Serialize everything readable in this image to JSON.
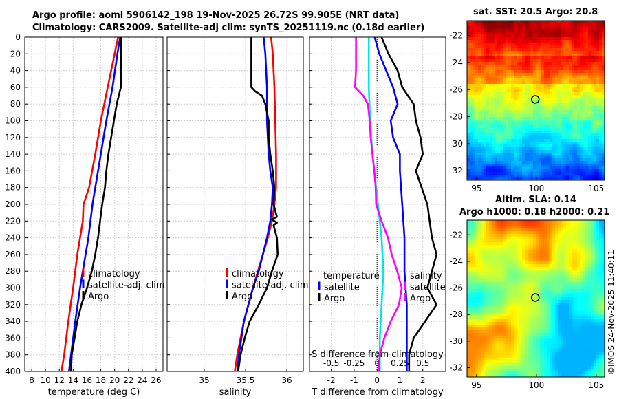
{
  "header": {
    "line1": "Argo profile: aoml 5906142_198 19-Nov-2025 26.72S 99.905E (NRT data)",
    "line2": "Climatology: CARS2009. Satellite-adj clim: synTS_20251119.nc (0.18d earlier)"
  },
  "sst_map": {
    "title": "sat. SST: 20.5 Argo: 20.8",
    "x_ticks": [
      "95",
      "100",
      "105"
    ],
    "y_ticks": [
      "-22",
      "-24",
      "-26",
      "-28",
      "-30",
      "-32"
    ],
    "x_ticks_values": [
      95,
      100,
      105
    ],
    "y_ticks_values": [
      -22,
      -24,
      -26,
      -28,
      -30,
      -32
    ],
    "xlim": [
      94.2,
      105.7
    ],
    "ylim": [
      -32.7,
      -20.9
    ],
    "float_lon": 99.905,
    "float_lat": -26.72
  },
  "sla_map": {
    "title1": "Altim. SLA: 0.14",
    "title2": "Argo h1000: 0.18 h2000: 0.21",
    "x_ticks": [
      "95",
      "100",
      "105"
    ],
    "y_ticks": [
      "-22",
      "-24",
      "-26",
      "-28",
      "-30",
      "-32"
    ],
    "x_ticks_values": [
      95,
      100,
      105
    ],
    "y_ticks_values": [
      -22,
      -24,
      -26,
      -28,
      -30,
      -32
    ],
    "xlim": [
      94.2,
      105.7
    ],
    "ylim": [
      -32.7,
      -20.9
    ],
    "float_lon": 99.905,
    "float_lat": -26.72
  },
  "stamp": "©IMOS 24-Nov-2025 11:40:11",
  "depth_ticks": [
    "0",
    "20",
    "40",
    "60",
    "80",
    "100",
    "120",
    "140",
    "160",
    "180",
    "200",
    "220",
    "240",
    "260",
    "280",
    "300",
    "320",
    "340",
    "360",
    "380",
    "400"
  ],
  "chart_data": [
    {
      "type": "line",
      "xlabel": "temperature (deg C)",
      "xlim": [
        7,
        27
      ],
      "ylim": [
        400,
        0
      ],
      "x_ticks": [
        "8",
        "10",
        "12",
        "14",
        "16",
        "18",
        "20",
        "22",
        "24",
        "26"
      ],
      "x_tick_values": [
        8,
        10,
        12,
        14,
        16,
        18,
        20,
        22,
        24,
        26
      ],
      "legend": [
        "climatology",
        "satellite-adj. clim",
        "Argo"
      ],
      "series": [
        {
          "name": "climatology",
          "color": "#ff0000",
          "depth": [
            0,
            20,
            60,
            100,
            140,
            180,
            200,
            220,
            240,
            260,
            300,
            340,
            380,
            400
          ],
          "values": [
            20.5,
            20.0,
            19.0,
            18.0,
            17.2,
            16.3,
            15.5,
            15.4,
            15.0,
            14.6,
            14.0,
            13.3,
            12.7,
            12.3
          ]
        },
        {
          "name": "satellite-adj. clim",
          "color": "#0000ff",
          "depth": [
            0,
            20,
            60,
            100,
            140,
            180,
            200,
            220,
            240,
            260,
            300,
            340,
            380,
            400
          ],
          "values": [
            20.8,
            20.4,
            19.7,
            18.8,
            18.0,
            17.2,
            16.8,
            16.5,
            16.2,
            15.8,
            15.0,
            14.3,
            13.7,
            13.4
          ]
        },
        {
          "name": "Argo",
          "color": "#000000",
          "depth": [
            0,
            40,
            60,
            70,
            80,
            100,
            140,
            160,
            180,
            200,
            220,
            240,
            260,
            280,
            300,
            320,
            340,
            360,
            380,
            400
          ],
          "values": [
            20.9,
            20.9,
            20.9,
            20.6,
            20.3,
            19.9,
            19.1,
            18.8,
            18.6,
            18.2,
            17.9,
            17.6,
            17.2,
            16.7,
            16.0,
            15.2,
            14.6,
            14.2,
            13.8,
            13.7
          ]
        }
      ]
    },
    {
      "type": "line",
      "xlabel": "salinity",
      "xlim": [
        34.55,
        36.2
      ],
      "ylim": [
        400,
        0
      ],
      "x_ticks": [
        "35",
        "35.5",
        "36"
      ],
      "x_tick_values": [
        35,
        35.5,
        36
      ],
      "legend": [
        "climatology",
        "satellite-adj. clim",
        "Argo"
      ],
      "series": [
        {
          "name": "climatology",
          "color": "#ff0000",
          "depth": [
            0,
            20,
            60,
            100,
            140,
            180,
            200,
            220,
            240,
            260,
            300,
            340,
            380,
            400
          ],
          "values": [
            35.81,
            35.83,
            35.85,
            35.86,
            35.87,
            35.87,
            35.85,
            35.82,
            35.77,
            35.71,
            35.59,
            35.48,
            35.4,
            35.37
          ]
        },
        {
          "name": "satellite-adj. clim",
          "color": "#0000ff",
          "depth": [
            0,
            20,
            40,
            60,
            100,
            140,
            160,
            180,
            200,
            220,
            240,
            260,
            280,
            300,
            340,
            380,
            400
          ],
          "values": [
            35.72,
            35.74,
            35.75,
            35.76,
            35.76,
            35.78,
            35.8,
            35.83,
            35.82,
            35.8,
            35.76,
            35.71,
            35.66,
            35.59,
            35.48,
            35.42,
            35.4
          ]
        },
        {
          "name": "Argo",
          "color": "#000000",
          "depth": [
            0,
            20,
            60,
            65,
            70,
            80,
            100,
            120,
            140,
            160,
            180,
            200,
            215,
            218,
            222,
            225,
            240,
            260,
            280,
            300,
            320,
            340,
            360,
            380,
            400
          ],
          "values": [
            35.57,
            35.57,
            35.57,
            35.62,
            35.7,
            35.74,
            35.78,
            35.78,
            35.8,
            35.83,
            35.85,
            35.84,
            35.88,
            35.82,
            35.88,
            35.84,
            35.88,
            35.89,
            35.82,
            35.76,
            35.66,
            35.55,
            35.49,
            35.44,
            35.41
          ]
        }
      ]
    },
    {
      "type": "line",
      "xlabel": "T difference from climatology",
      "xlabel_top": "S difference from climatology",
      "xlim": [
        -2.95,
        3.0
      ],
      "ylim": [
        400,
        0
      ],
      "x_ticks": [
        "-2",
        "-1",
        "0",
        "1",
        "2"
      ],
      "x_tick_values": [
        -2,
        -1,
        0,
        1,
        2
      ],
      "s_ticks": [
        "-0.5",
        "-0.25",
        "0",
        "0.25",
        "0.5"
      ],
      "s_tick_values": [
        -0.5,
        -0.25,
        0,
        0.25,
        0.5
      ],
      "s_scale": 4,
      "legend_left": [
        "temperature",
        "satellite",
        "Argo"
      ],
      "legend_right": [
        "salinity",
        "satellite",
        "Argo"
      ],
      "series": [
        {
          "name": "temperature satellite",
          "color": "#0000ff",
          "kind": "T",
          "depth": [
            0,
            20,
            40,
            60,
            80,
            100,
            120,
            140,
            160,
            200,
            240,
            280,
            320,
            360,
            400
          ],
          "values": [
            -0.1,
            0.1,
            0.4,
            0.7,
            0.9,
            0.6,
            0.7,
            1.0,
            1.0,
            1.1,
            1.2,
            1.2,
            1.3,
            1.3,
            1.3
          ]
        },
        {
          "name": "temperature Argo",
          "color": "#000000",
          "kind": "T",
          "depth": [
            0,
            20,
            40,
            60,
            80,
            100,
            120,
            140,
            160,
            200,
            240,
            260,
            280,
            300,
            320,
            340,
            360,
            380,
            400
          ],
          "values": [
            0.2,
            0.5,
            0.9,
            1.1,
            1.6,
            1.7,
            1.9,
            2.0,
            1.7,
            2.2,
            2.4,
            2.6,
            2.4,
            2.2,
            2.6,
            2.1,
            1.6,
            1.4,
            1.4
          ]
        },
        {
          "name": "salinity satellite",
          "color": "#00e5e5",
          "kind": "S",
          "depth": [
            0,
            20,
            60,
            100,
            140,
            180,
            200,
            240,
            280,
            320,
            360,
            400
          ],
          "values": [
            -0.09,
            -0.09,
            -0.09,
            -0.075,
            -0.05,
            -0.01,
            0.01,
            0.05,
            0.07,
            0.05,
            0.03,
            0.03
          ]
        },
        {
          "name": "salinity Argo",
          "color": "#ff00ff",
          "kind": "S",
          "depth": [
            0,
            20,
            40,
            60,
            70,
            80,
            100,
            120,
            140,
            160,
            180,
            200,
            220,
            240,
            260,
            280,
            300,
            320,
            340,
            360,
            380,
            400
          ],
          "values": [
            -0.23,
            -0.23,
            -0.23,
            -0.24,
            -0.15,
            -0.1,
            -0.08,
            -0.07,
            -0.05,
            -0.03,
            -0.015,
            -0.01,
            0.05,
            0.12,
            0.16,
            0.22,
            0.27,
            0.24,
            0.15,
            0.08,
            0.03,
            0.02
          ]
        }
      ]
    }
  ]
}
